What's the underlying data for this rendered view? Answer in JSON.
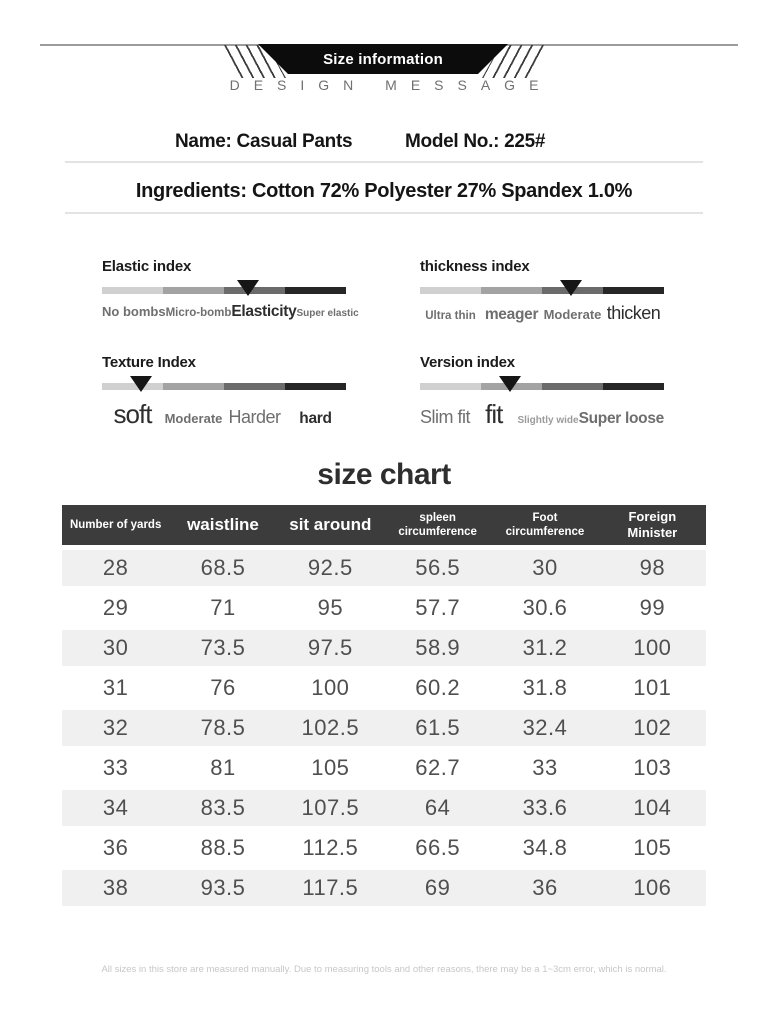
{
  "banner": {
    "title": "Size information",
    "subtitle": "DESIGN MESSAGE"
  },
  "product": {
    "name_label": "Name: Casual Pants",
    "model_label": "Model No.: 225#",
    "ingredients_label": "Ingredients: Cotton 72% Polyester 27% Spandex 1.0%"
  },
  "segment_colors": [
    "#d0d0d0",
    "#a3a3a3",
    "#6b6b6b",
    "#262626"
  ],
  "marker_color": "#161616",
  "indices": [
    {
      "title": "Elastic index",
      "marker_percent": 60,
      "labels": [
        {
          "text": "No bombs",
          "cls": "sz-md tone-mid"
        },
        {
          "text": "Micro-bomb",
          "cls": "sz-sm tone-mid"
        },
        {
          "text": "Elasticity",
          "cls": "sz-lg tone-dark"
        },
        {
          "text": "Super elastic",
          "cls": "sz-xs tone-mid"
        }
      ]
    },
    {
      "title": "thickness index",
      "marker_percent": 62,
      "labels": [
        {
          "text": "Ultra thin",
          "cls": "sz-sm tone-mid"
        },
        {
          "text": "meager",
          "cls": "sz-lg tone-mid"
        },
        {
          "text": "Moderate",
          "cls": "sz-md tone-mid"
        },
        {
          "text": "thicken",
          "cls": "sz-xl tone-dark"
        }
      ]
    },
    {
      "title": "Texture Index",
      "marker_percent": 16,
      "labels": [
        {
          "text": "soft",
          "cls": "sz-xxl tone-dark"
        },
        {
          "text": "Moderate",
          "cls": "sz-md tone-mid"
        },
        {
          "text": "Harder",
          "cls": "sz-xl tone-mid"
        },
        {
          "text": "hard",
          "cls": "sz-lg tone-dark"
        }
      ]
    },
    {
      "title": "Version index",
      "marker_percent": 37,
      "labels": [
        {
          "text": "Slim fit",
          "cls": "sz-xl tone-mid"
        },
        {
          "text": "fit",
          "cls": "sz-xxl tone-dark"
        },
        {
          "text": "Slightly wide",
          "cls": "sz-xs tone-light"
        },
        {
          "text": "Super loose",
          "cls": "sz-lg tone-mid"
        }
      ]
    }
  ],
  "size_chart": {
    "title": "size chart",
    "columns": [
      "Number of yards",
      "waistline",
      "sit around",
      "spleen circumference",
      "Foot circumference",
      "Foreign Minister"
    ],
    "rows": [
      [
        "28",
        "68.5",
        "92.5",
        "56.5",
        "30",
        "98"
      ],
      [
        "29",
        "71",
        "95",
        "57.7",
        "30.6",
        "99"
      ],
      [
        "30",
        "73.5",
        "97.5",
        "58.9",
        "31.2",
        "100"
      ],
      [
        "31",
        "76",
        "100",
        "60.2",
        "31.8",
        "101"
      ],
      [
        "32",
        "78.5",
        "102.5",
        "61.5",
        "32.4",
        "102"
      ],
      [
        "33",
        "81",
        "105",
        "62.7",
        "33",
        "103"
      ],
      [
        "34",
        "83.5",
        "107.5",
        "64",
        "33.6",
        "104"
      ],
      [
        "36",
        "88.5",
        "112.5",
        "66.5",
        "34.8",
        "105"
      ],
      [
        "38",
        "93.5",
        "117.5",
        "69",
        "36",
        "106"
      ]
    ]
  },
  "footer": {
    "note": "All sizes in this store are measured manually. Due to measuring tools and other reasons, there may be a 1~3cm error, which is normal."
  }
}
